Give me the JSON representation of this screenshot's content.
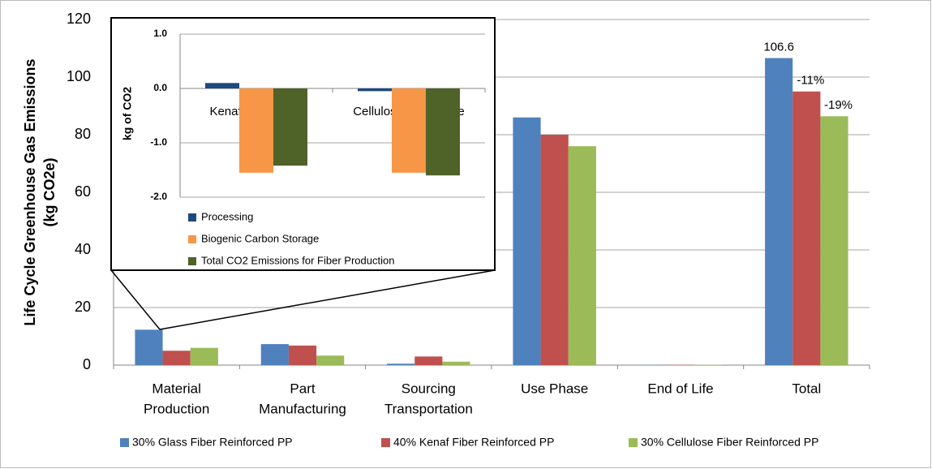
{
  "chart_data": [
    {
      "type": "bar",
      "y_label": [
        "Life Cycle Greenhouse Gas Emissions",
        "(kg CO2e)"
      ],
      "categories": [
        [
          "Material",
          "Production"
        ],
        [
          "Part",
          "Manufacturing"
        ],
        [
          "Sourcing",
          "Transportation"
        ],
        [
          "Use Phase"
        ],
        [
          "End of Life"
        ],
        [
          "Total"
        ]
      ],
      "series": [
        {
          "name": "30% Glass Fiber Reinforced PP",
          "color": "#4f81bd",
          "values": [
            12.3,
            7.3,
            0.5,
            86,
            0.1,
            106.6
          ],
          "value_labels": [
            null,
            null,
            null,
            null,
            null,
            "106.6"
          ]
        },
        {
          "name": "40% Kenaf Fiber Reinforced PP",
          "color": "#c0504d",
          "values": [
            5,
            6.8,
            3,
            80,
            0.1,
            95
          ]
        },
        {
          "name": "30% Cellulose Fiber Reinforced PP",
          "color": "#9bbb59",
          "values": [
            6,
            3.3,
            1.2,
            76,
            0.1,
            86.4
          ]
        }
      ],
      "annotations": [
        "-11%",
        "-19%"
      ],
      "ylim": [
        0,
        120
      ],
      "yticks": [
        0,
        20,
        40,
        60,
        80,
        100,
        120
      ],
      "grid": true,
      "legend": "bottom"
    },
    {
      "type": "bar",
      "y_label": "kg of CO2",
      "categories": [
        "Kenaf Composite",
        "Cellulose Composite"
      ],
      "series": [
        {
          "name": "Processing",
          "color": "#1f497d",
          "values": [
            0.1,
            -0.05
          ]
        },
        {
          "name": "Biogenic Carbon Storage",
          "color": "#f79646",
          "values": [
            -1.55,
            -1.55
          ]
        },
        {
          "name": "Total CO2 Emissions for Fiber Production",
          "color": "#4f6228",
          "values": [
            -1.42,
            -1.6
          ]
        }
      ],
      "ylim": [
        -2,
        1
      ],
      "yticks": [
        {
          "value": 1,
          "label": "1.0"
        },
        {
          "value": 0,
          "label": "0.0"
        },
        {
          "value": -1,
          "label": "-1.0"
        },
        {
          "value": -2,
          "label": "-2.0"
        }
      ],
      "grid": true,
      "legend": "bottom-left"
    }
  ]
}
